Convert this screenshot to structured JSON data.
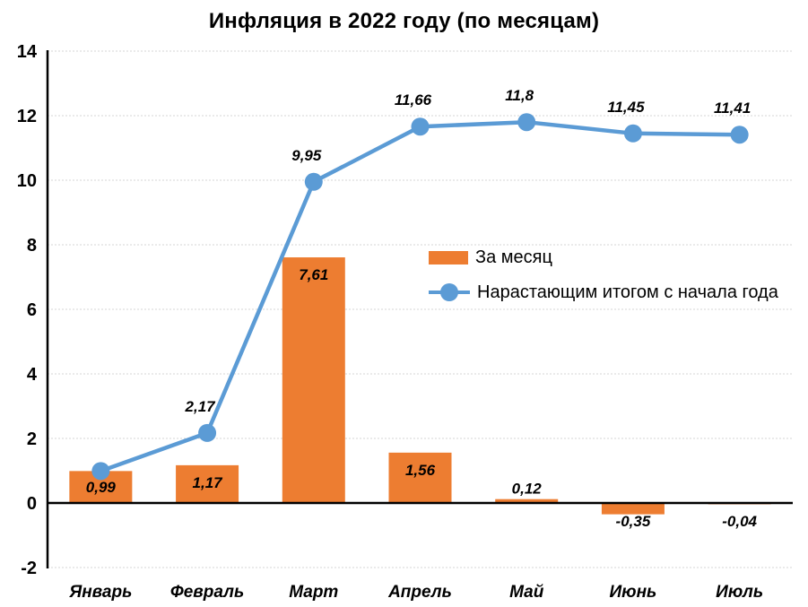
{
  "title": "Инфляция в 2022 году (по месяцам)",
  "colors": {
    "bar": "#ED7D31",
    "line": "#5B9BD5",
    "grid": "#D6D6D6",
    "axis": "#000000",
    "label_text": "#000000",
    "background": "#FFFFFF"
  },
  "chart_data": {
    "type": "combo-bar-line",
    "title": "Инфляция в 2022 году (по месяцам)",
    "categories": [
      "Январь",
      "Февраль",
      "Март",
      "Апрель",
      "Май",
      "Июнь",
      "Июль"
    ],
    "series": [
      {
        "name": "За месяц",
        "type": "bar",
        "color": "#ED7D31",
        "values": [
          0.99,
          1.17,
          7.61,
          1.56,
          0.12,
          -0.35,
          -0.04
        ],
        "labels": [
          "0,99",
          "1,17",
          "7,61",
          "1,56",
          "0,12",
          "-0,35",
          "-0,04"
        ]
      },
      {
        "name": "Нарастающим итогом с начала года",
        "type": "line",
        "color": "#5B9BD5",
        "values": [
          0.99,
          2.17,
          9.95,
          11.66,
          11.8,
          11.45,
          11.41
        ],
        "labels": [
          "",
          "2,17",
          "9,95",
          "11,66",
          "11,8",
          "11,45",
          "11,41"
        ]
      }
    ],
    "xlabel": "",
    "ylabel": "",
    "ylim": [
      -2,
      14
    ],
    "yticks": [
      14,
      12,
      10,
      8,
      6,
      4,
      2,
      0,
      -2
    ],
    "grid": true,
    "legend_position": "inside-center-right",
    "data_label_style": "bold-italic"
  }
}
